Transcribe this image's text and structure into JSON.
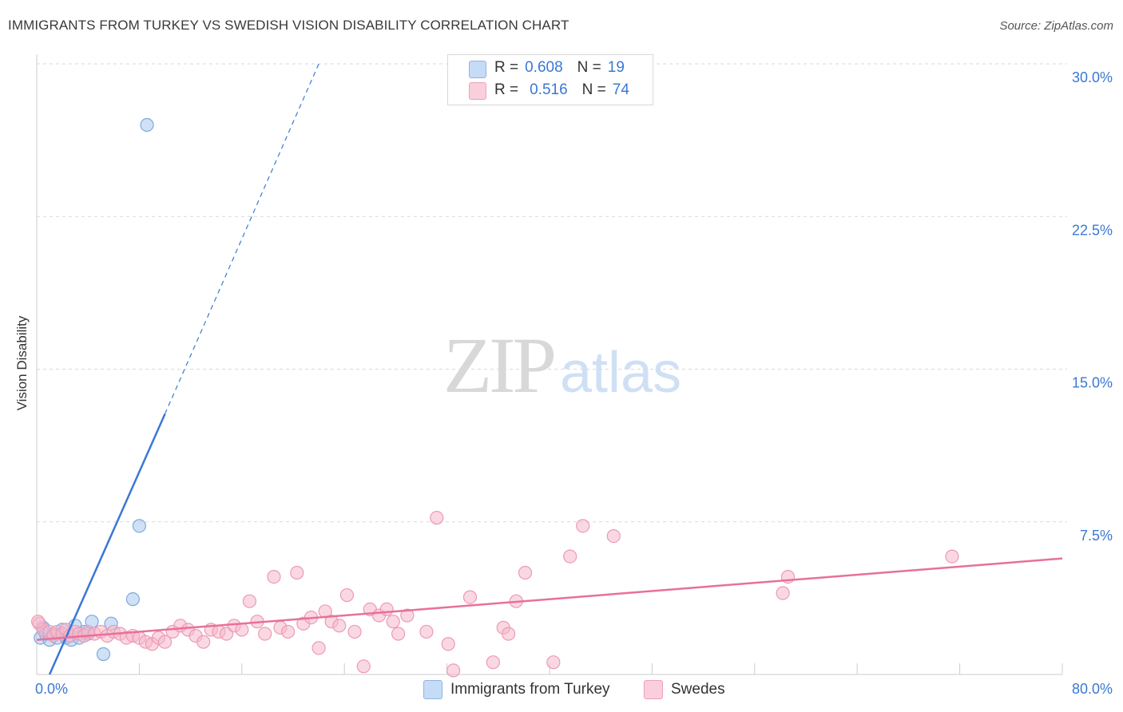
{
  "title": "IMMIGRANTS FROM TURKEY VS SWEDISH VISION DISABILITY CORRELATION CHART",
  "source": "Source: ZipAtlas.com",
  "watermark": {
    "zip": "ZIP",
    "atlas": "atlas"
  },
  "colors": {
    "blue": "#3a78d4",
    "blue_fill": "#a9c8ef",
    "pink": "#e8709a",
    "pink_fill": "#f5b8cb",
    "grid": "#d9d9d9",
    "tick_label": "#3a78d4"
  },
  "legend": {
    "r_label": "R =",
    "n_label": "N =",
    "rows": [
      {
        "r": "0.608",
        "n": "19"
      },
      {
        "r": "0.516",
        "n": "74"
      }
    ]
  },
  "chart_data": {
    "type": "scatter",
    "title": "IMMIGRANTS FROM TURKEY VS SWEDISH VISION DISABILITY CORRELATION CHART",
    "xlabel": "",
    "ylabel": "Vision Disability",
    "xlim": [
      0,
      80
    ],
    "ylim": [
      0,
      30
    ],
    "x_tick_labels": [
      "0.0%",
      "80.0%"
    ],
    "y_ticks": [
      7.5,
      15.0,
      22.5,
      30.0
    ],
    "y_tick_labels": [
      "7.5%",
      "15.0%",
      "22.5%",
      "30.0%"
    ],
    "grid": true,
    "legend_position": "top-center",
    "series": [
      {
        "name": "Immigrants from Turkey",
        "r": 0.608,
        "n": 19,
        "points": [
          [
            0.3,
            1.8
          ],
          [
            0.5,
            2.3
          ],
          [
            0.7,
            2.0
          ],
          [
            1.0,
            1.7
          ],
          [
            1.3,
            2.0
          ],
          [
            1.6,
            1.8
          ],
          [
            2.0,
            2.2
          ],
          [
            2.3,
            1.8
          ],
          [
            2.7,
            1.7
          ],
          [
            3.0,
            2.4
          ],
          [
            3.3,
            1.8
          ],
          [
            3.7,
            2.1
          ],
          [
            4.0,
            2.0
          ],
          [
            4.3,
            2.6
          ],
          [
            5.2,
            1.0
          ],
          [
            5.8,
            2.5
          ],
          [
            7.5,
            3.7
          ],
          [
            8.0,
            7.3
          ],
          [
            8.6,
            27.0
          ]
        ],
        "trend": {
          "x": [
            1.0,
            10.0
          ],
          "y": [
            0.0,
            12.8
          ]
        },
        "trend_extension": {
          "x": [
            10.0,
            22.0
          ],
          "y": [
            12.8,
            30.0
          ]
        }
      },
      {
        "name": "Swedes",
        "r": 0.516,
        "n": 74,
        "points": [
          [
            0.2,
            2.5
          ],
          [
            0.5,
            2.2
          ],
          [
            1.0,
            2.1
          ],
          [
            1.3,
            1.9
          ],
          [
            1.6,
            2.1
          ],
          [
            2.0,
            2.0
          ],
          [
            2.3,
            2.2
          ],
          [
            2.6,
            1.9
          ],
          [
            3.0,
            2.1
          ],
          [
            3.3,
            2.0
          ],
          [
            3.7,
            1.9
          ],
          [
            4.0,
            2.1
          ],
          [
            4.5,
            2.0
          ],
          [
            5.0,
            2.1
          ],
          [
            5.5,
            1.9
          ],
          [
            6.0,
            2.1
          ],
          [
            6.5,
            2.0
          ],
          [
            7.0,
            1.8
          ],
          [
            7.5,
            1.9
          ],
          [
            8.0,
            1.8
          ],
          [
            8.5,
            1.6
          ],
          [
            9.0,
            1.5
          ],
          [
            9.5,
            1.8
          ],
          [
            10.0,
            1.6
          ],
          [
            10.6,
            2.1
          ],
          [
            11.2,
            2.4
          ],
          [
            11.8,
            2.2
          ],
          [
            12.4,
            1.9
          ],
          [
            13.0,
            1.6
          ],
          [
            13.6,
            2.2
          ],
          [
            14.2,
            2.1
          ],
          [
            14.8,
            2.0
          ],
          [
            15.4,
            2.4
          ],
          [
            16.0,
            2.2
          ],
          [
            16.6,
            3.6
          ],
          [
            17.2,
            2.6
          ],
          [
            17.8,
            2.0
          ],
          [
            18.5,
            4.8
          ],
          [
            19.0,
            2.3
          ],
          [
            19.6,
            2.1
          ],
          [
            20.3,
            5.0
          ],
          [
            20.8,
            2.5
          ],
          [
            21.4,
            2.8
          ],
          [
            22.0,
            1.3
          ],
          [
            22.5,
            3.1
          ],
          [
            23.0,
            2.6
          ],
          [
            23.6,
            2.4
          ],
          [
            24.2,
            3.9
          ],
          [
            24.8,
            2.1
          ],
          [
            25.5,
            0.4
          ],
          [
            26.0,
            3.2
          ],
          [
            26.7,
            2.9
          ],
          [
            27.3,
            3.2
          ],
          [
            27.8,
            2.6
          ],
          [
            28.2,
            2.0
          ],
          [
            28.9,
            2.9
          ],
          [
            30.4,
            2.1
          ],
          [
            31.2,
            7.7
          ],
          [
            32.1,
            1.5
          ],
          [
            32.5,
            0.2
          ],
          [
            33.8,
            3.8
          ],
          [
            35.6,
            0.6
          ],
          [
            36.4,
            2.3
          ],
          [
            36.8,
            2.0
          ],
          [
            37.4,
            3.6
          ],
          [
            38.1,
            5.0
          ],
          [
            40.3,
            0.6
          ],
          [
            41.6,
            5.8
          ],
          [
            42.6,
            7.3
          ],
          [
            45.0,
            6.8
          ],
          [
            58.2,
            4.0
          ],
          [
            58.6,
            4.8
          ],
          [
            71.4,
            5.8
          ],
          [
            0.1,
            2.6
          ]
        ],
        "trend": {
          "x": [
            0.0,
            80.0
          ],
          "y": [
            1.7,
            5.7
          ]
        }
      }
    ],
    "bottom_legend": [
      "Immigrants from Turkey",
      "Swedes"
    ]
  }
}
